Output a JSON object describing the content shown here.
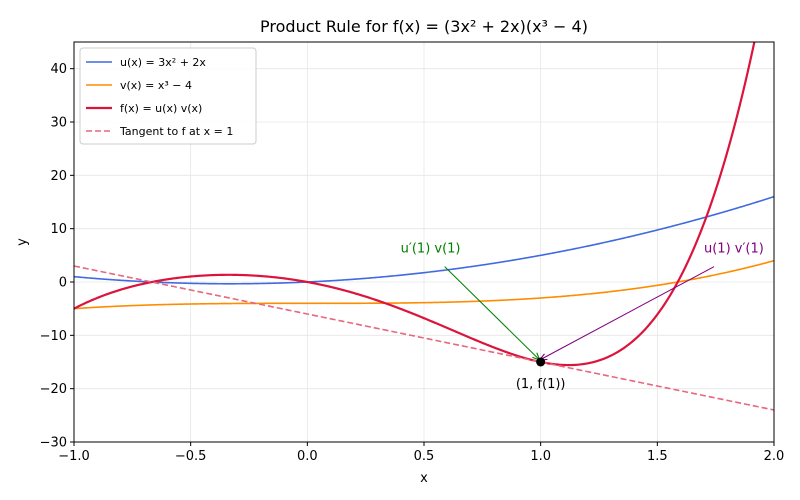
{
  "chart_data": {
    "type": "line",
    "title": "Product Rule for f(x) = (3x² + 2x)(x³ − 4)",
    "xlabel": "x",
    "ylabel": "y",
    "xlim": [
      -1.0,
      2.0
    ],
    "ylim": [
      -30,
      45
    ],
    "x_ticks": [
      -1.0,
      -0.5,
      0.0,
      0.5,
      1.0,
      1.5,
      2.0
    ],
    "x_tick_labels": [
      "−1.0",
      "−0.5",
      "0.0",
      "0.5",
      "1.0",
      "1.5",
      "2.0"
    ],
    "y_ticks": [
      -30,
      -20,
      -10,
      0,
      10,
      20,
      30,
      40
    ],
    "y_tick_labels": [
      "−30",
      "−20",
      "−10",
      "0",
      "10",
      "20",
      "30",
      "40"
    ],
    "grid": true,
    "legend_position": "top-left",
    "series": [
      {
        "name": "u(x) = 3x² + 2x",
        "color": "#4169e1",
        "style": "solid",
        "function": "3*x^2 + 2*x"
      },
      {
        "name": "v(x) = x³ − 4",
        "color": "#ff8c00",
        "style": "solid",
        "function": "x^3 - 4"
      },
      {
        "name": "f(x) = u(x) v(x)",
        "color": "#dc143c",
        "style": "solid",
        "function": "(3*x^2 + 2*x)*(x^3 - 4)"
      },
      {
        "name": "Tangent to f at x = 1",
        "color": "#e8677d",
        "style": "dashed",
        "function": "-15 - 9*(x - 1)"
      }
    ],
    "point": {
      "x": 1,
      "y": -15,
      "label": "(1, f(1))"
    },
    "annotations": [
      {
        "text": "u′(1) v(1)",
        "color": "#008000",
        "text_x": 0.4,
        "text_y": 5.5,
        "arrow_to": [
          1,
          -15
        ]
      },
      {
        "text": "u(1) v′(1)",
        "color": "#800080",
        "text_x": 1.7,
        "text_y": 5.5,
        "arrow_to": [
          1,
          -15
        ]
      }
    ]
  }
}
